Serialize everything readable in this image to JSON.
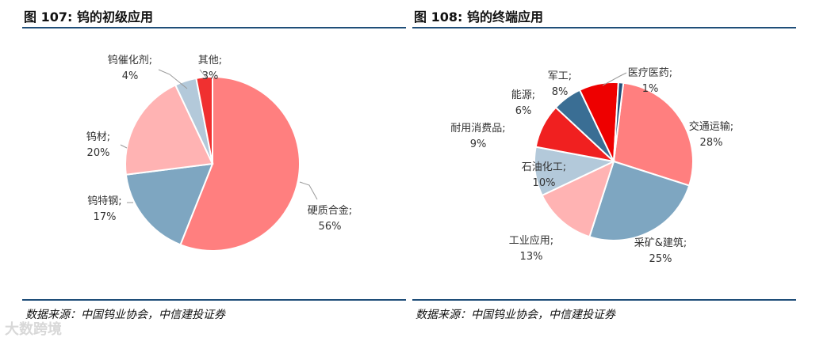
{
  "watermark": "大数跨境",
  "chart_data": [
    {
      "type": "pie",
      "title": "图 107: 钨的初级应用",
      "source": "数据来源：中国钨业协会，中信建投证券",
      "start_angle": 0,
      "slices": [
        {
          "label": "硬质合金;",
          "value": 56,
          "pct": "56%",
          "color": "#ff7f7f"
        },
        {
          "label": "钨特钢;",
          "value": 17,
          "pct": "17%",
          "color": "#7ea6c1"
        },
        {
          "label": "钨材;",
          "value": 20,
          "pct": "20%",
          "color": "#ffb3b3"
        },
        {
          "label": "钨催化剂;",
          "value": 4,
          "pct": "4%",
          "color": "#b3c9da"
        },
        {
          "label": "其他;",
          "value": 3,
          "pct": "3%",
          "color": "#f03030"
        }
      ]
    },
    {
      "type": "pie",
      "title": "图 108: 钨的终端应用",
      "source": "数据来源：中国钨业协会，中信建投证券",
      "start_angle": 7,
      "slices": [
        {
          "label": "交通运输;",
          "value": 28,
          "pct": "28%",
          "color": "#ff7f7f"
        },
        {
          "label": "采矿&建筑;",
          "value": 25,
          "pct": "25%",
          "color": "#7ea6c1"
        },
        {
          "label": "工业应用;",
          "value": 13,
          "pct": "13%",
          "color": "#ffb3b3"
        },
        {
          "label": "石油化工;",
          "value": 10,
          "pct": "10%",
          "color": "#b3c9da"
        },
        {
          "label": "耐用消费品;",
          "value": 9,
          "pct": "9%",
          "color": "#f02020"
        },
        {
          "label": "能源;",
          "value": 6,
          "pct": "6%",
          "color": "#3a6e94"
        },
        {
          "label": "军工;",
          "value": 8,
          "pct": "8%",
          "color": "#ee0000"
        },
        {
          "label": "医疗医药;",
          "value": 1,
          "pct": "1%",
          "color": "#1f4e79"
        }
      ]
    }
  ]
}
